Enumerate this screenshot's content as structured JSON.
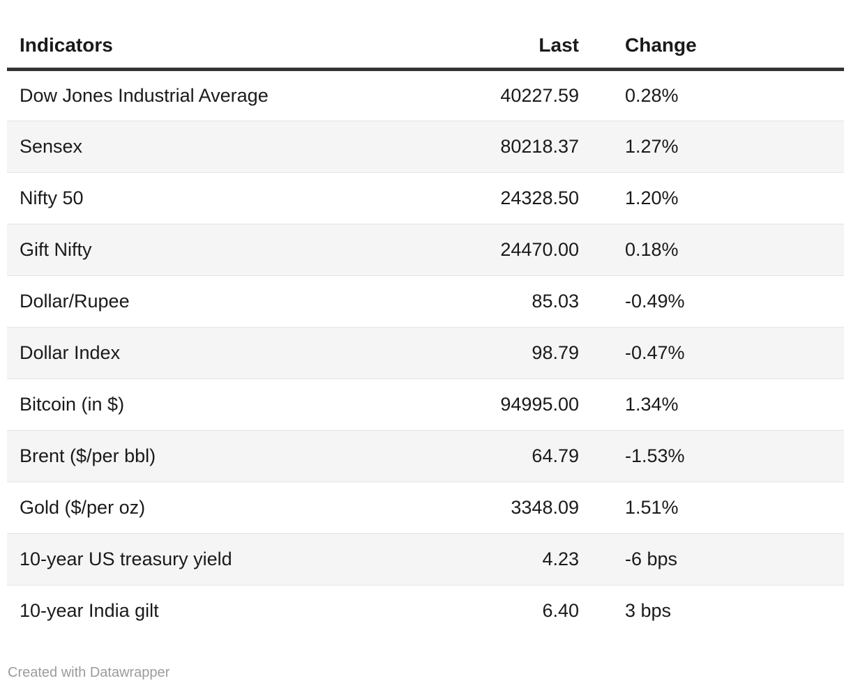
{
  "chart_data": {
    "type": "table",
    "columns": [
      "Indicators",
      "Last",
      "Change"
    ],
    "rows": [
      [
        "Dow Jones Industrial Average",
        "40227.59",
        "0.28%"
      ],
      [
        "Sensex",
        "80218.37",
        "1.27%"
      ],
      [
        "Nifty 50",
        "24328.50",
        "1.20%"
      ],
      [
        "Gift Nifty",
        "24470.00",
        "0.18%"
      ],
      [
        "Dollar/Rupee",
        "85.03",
        "-0.49%"
      ],
      [
        "Dollar Index",
        "98.79",
        "-0.47%"
      ],
      [
        "Bitcoin (in $)",
        "94995.00",
        "1.34%"
      ],
      [
        "Brent ($/per bbl)",
        "64.79",
        "-1.53%"
      ],
      [
        "Gold ($/per oz)",
        "3348.09",
        "1.51%"
      ],
      [
        "10-year US treasury yield",
        "4.23",
        "-6 bps"
      ],
      [
        "10-year India gilt",
        "6.40",
        "3 bps"
      ]
    ],
    "layout_hints": {
      "zebra_striping": true,
      "last_column_align": "right",
      "change_column_align": "left",
      "header_rule": true
    }
  },
  "footer": {
    "credit": "Created with Datawrapper"
  },
  "colors": {
    "text": "#1a1a1a",
    "stripe": "#f5f5f5",
    "row_border": "#e4e4e4",
    "header_rule": "#333333",
    "footer_text": "#9b9b9b",
    "background": "#ffffff"
  }
}
